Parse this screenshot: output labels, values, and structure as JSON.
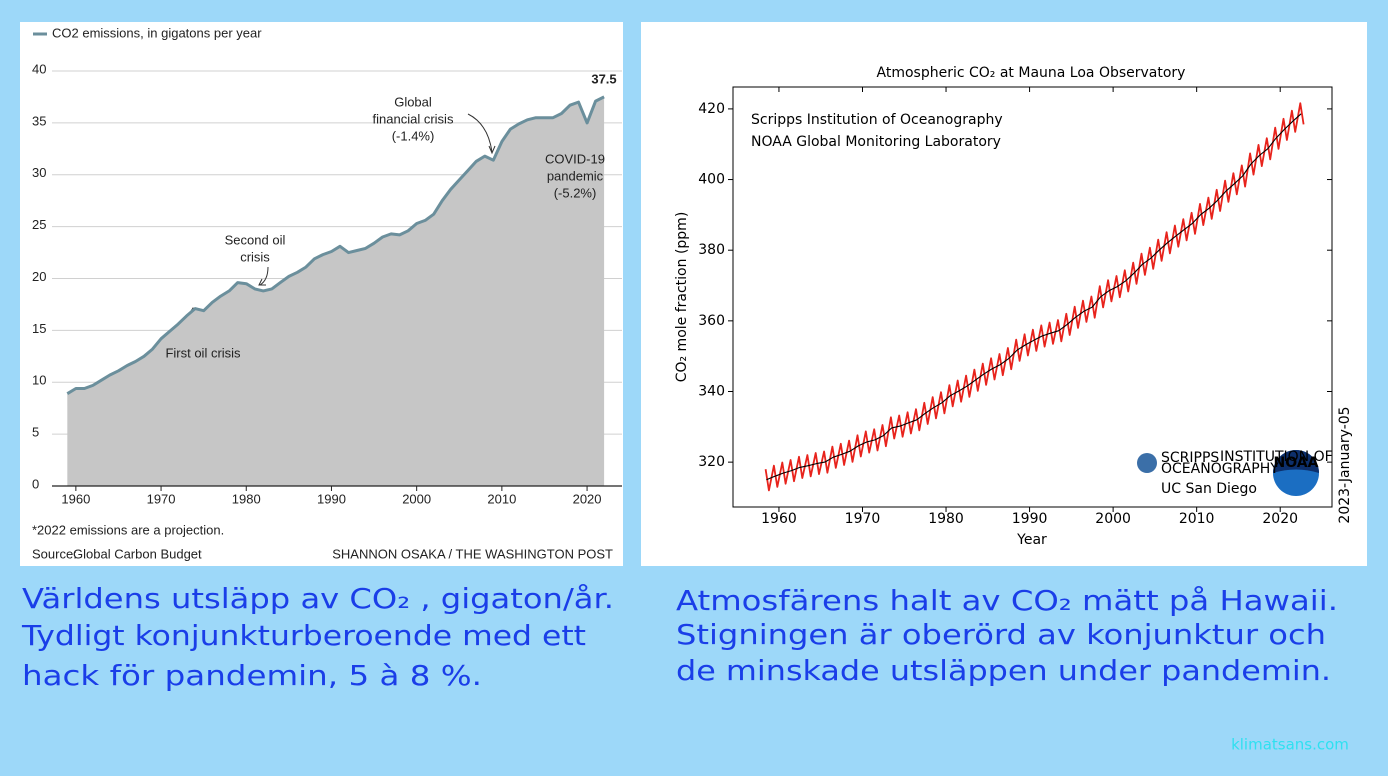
{
  "chart_data": [
    {
      "type": "area",
      "x": [
        1959,
        1960,
        1961,
        1962,
        1963,
        1964,
        1965,
        1966,
        1967,
        1968,
        1969,
        1970,
        1971,
        1972,
        1973,
        1974,
        1975,
        1976,
        1977,
        1978,
        1979,
        1980,
        1981,
        1982,
        1983,
        1984,
        1985,
        1986,
        1987,
        1988,
        1989,
        1990,
        1991,
        1992,
        1993,
        1994,
        1995,
        1996,
        1997,
        1998,
        1999,
        2000,
        2001,
        2002,
        2003,
        2004,
        2005,
        2006,
        2007,
        2008,
        2009,
        2010,
        2011,
        2012,
        2013,
        2014,
        2015,
        2016,
        2017,
        2018,
        2019,
        2020,
        2021,
        2022
      ],
      "series": [
        {
          "name": "CO2 emissions, in gigatons per year",
          "color": "#6b8f9c",
          "fill": "#c6c6c6",
          "values": [
            8.9,
            9.4,
            9.4,
            9.7,
            10.2,
            10.7,
            11.1,
            11.6,
            12.0,
            12.5,
            13.2,
            14.2,
            14.9,
            15.6,
            16.4,
            17.1,
            16.9,
            17.7,
            18.3,
            18.8,
            19.6,
            19.5,
            19.0,
            18.8,
            19.0,
            19.6,
            20.2,
            20.6,
            21.1,
            21.9,
            22.3,
            22.6,
            23.1,
            22.5,
            22.7,
            22.9,
            23.4,
            24.0,
            24.3,
            24.2,
            24.6,
            25.3,
            25.6,
            26.2,
            27.5,
            28.6,
            29.5,
            30.4,
            31.3,
            31.8,
            31.4,
            33.2,
            34.4,
            34.9,
            35.3,
            35.5,
            35.5,
            35.5,
            35.9,
            36.7,
            37.0,
            35.0,
            37.1,
            37.5
          ]
        }
      ],
      "xlim": [
        1957.2,
        2024.1
      ],
      "xticks": [
        1960,
        1970,
        1980,
        1990,
        2000,
        2010,
        2020
      ],
      "ylim": [
        0,
        40
      ],
      "yticks": [
        0,
        5,
        10,
        15,
        20,
        25,
        30,
        35,
        40
      ],
      "grid": true,
      "annotations": [
        {
          "lines": [
            "Global",
            "financial crisis",
            "(-1.4%)"
          ]
        },
        {
          "lines": [
            "COVID-19",
            "pandemic",
            "(-5.2%)"
          ]
        },
        {
          "lines": [
            "Second oil",
            "crisis"
          ]
        },
        {
          "lines": [
            "First oil crisis"
          ]
        },
        {
          "lines": [
            "37.5"
          ]
        }
      ],
      "footnote": "*2022 emissions are a projection.",
      "source_label": "Source:",
      "source": "Global Carbon Budget",
      "credit": "SHANNON OSAKA / THE WASHINGTON POST"
    },
    {
      "type": "line",
      "title": "Atmospheric CO₂ at Mauna Loa Observatory",
      "xlabel": "Year",
      "ylabel": "CO₂ mole fraction (ppm)",
      "series": [
        {
          "color": "#e8231c",
          "x": [
            1958.4,
            1958.8,
            1959.4,
            1959.8,
            1960.4,
            1960.8,
            1961.4,
            1961.8,
            1962.4,
            1962.8,
            1963.4,
            1963.8,
            1964.4,
            1964.8,
            1965.4,
            1965.8,
            1966.4,
            1966.8,
            1967.4,
            1967.8,
            1968.4,
            1968.8,
            1969.4,
            1969.8,
            1970.4,
            1970.8,
            1971.4,
            1971.8,
            1972.4,
            1972.8,
            1973.4,
            1973.8,
            1974.4,
            1974.8,
            1975.4,
            1975.8,
            1976.4,
            1976.8,
            1977.4,
            1977.8,
            1978.4,
            1978.8,
            1979.4,
            1979.8,
            1980.4,
            1980.8,
            1981.4,
            1981.8,
            1982.4,
            1982.8,
            1983.4,
            1983.8,
            1984.4,
            1984.8,
            1985.4,
            1985.8,
            1986.4,
            1986.8,
            1987.4,
            1987.8,
            1988.4,
            1988.8,
            1989.4,
            1989.8,
            1990.4,
            1990.8,
            1991.4,
            1991.8,
            1992.4,
            1992.8,
            1993.4,
            1993.8,
            1994.4,
            1994.8,
            1995.4,
            1995.8,
            1996.4,
            1996.8,
            1997.4,
            1997.8,
            1998.4,
            1998.8,
            1999.4,
            1999.8,
            2000.4,
            2000.8,
            2001.4,
            2001.8,
            2002.4,
            2002.8,
            2003.4,
            2003.8,
            2004.4,
            2004.8,
            2005.4,
            2005.8,
            2006.4,
            2006.8,
            2007.4,
            2007.8,
            2008.4,
            2008.8,
            2009.4,
            2009.8,
            2010.4,
            2010.8,
            2011.4,
            2011.8,
            2012.4,
            2012.8,
            2013.4,
            2013.8,
            2014.4,
            2014.8,
            2015.4,
            2015.8,
            2016.4,
            2016.8,
            2017.4,
            2017.8,
            2018.4,
            2018.8,
            2019.4,
            2019.8,
            2020.4,
            2020.8,
            2021.4,
            2021.8,
            2022.4,
            2022.8
          ],
          "values": [
            318.0,
            312.0,
            319.0,
            313.0,
            319.9,
            313.9,
            320.6,
            314.6,
            321.5,
            315.5,
            322.0,
            316.0,
            322.6,
            316.6,
            323.0,
            317.0,
            324.4,
            318.4,
            325.2,
            319.2,
            326.1,
            320.1,
            327.6,
            321.6,
            328.7,
            322.7,
            329.3,
            323.3,
            330.5,
            324.5,
            332.7,
            326.7,
            333.2,
            327.2,
            334.1,
            328.1,
            335.0,
            329.0,
            336.8,
            330.8,
            338.4,
            332.4,
            339.8,
            333.8,
            341.8,
            335.8,
            343.1,
            337.1,
            344.5,
            338.5,
            346.2,
            340.2,
            347.9,
            341.9,
            349.4,
            343.4,
            350.6,
            344.6,
            352.3,
            346.3,
            354.7,
            348.7,
            356.2,
            350.2,
            357.5,
            351.5,
            358.7,
            352.7,
            359.5,
            353.5,
            360.2,
            354.2,
            362.0,
            356.0,
            364.0,
            358.0,
            365.7,
            359.7,
            366.9,
            360.9,
            369.8,
            363.8,
            371.5,
            365.5,
            372.7,
            366.7,
            374.3,
            368.3,
            376.5,
            370.5,
            379.0,
            373.0,
            380.7,
            374.7,
            383.0,
            377.0,
            385.1,
            379.1,
            387.0,
            381.0,
            388.8,
            382.8,
            390.6,
            384.6,
            393.1,
            387.1,
            394.9,
            388.9,
            397.1,
            391.1,
            399.7,
            393.7,
            401.8,
            395.8,
            404.0,
            398.0,
            407.4,
            401.4,
            409.8,
            403.8,
            411.7,
            405.7,
            414.7,
            408.7,
            417.2,
            411.2,
            419.5,
            413.5,
            421.6,
            415.6
          ]
        },
        {
          "color": "#000000",
          "x": [
            1958.5,
            1959.5,
            1960.5,
            1961.5,
            1962.5,
            1963.5,
            1964.5,
            1965.5,
            1966.5,
            1967.5,
            1968.5,
            1969.5,
            1970.5,
            1971.5,
            1972.5,
            1973.5,
            1974.5,
            1975.5,
            1976.5,
            1977.5,
            1978.5,
            1979.5,
            1980.5,
            1981.5,
            1982.5,
            1983.5,
            1984.5,
            1985.5,
            1986.5,
            1987.5,
            1988.5,
            1989.5,
            1990.5,
            1991.5,
            1992.5,
            1993.5,
            1994.5,
            1995.5,
            1996.5,
            1997.5,
            1998.5,
            1999.5,
            2000.5,
            2001.5,
            2002.5,
            2003.5,
            2004.5,
            2005.5,
            2006.5,
            2007.5,
            2008.5,
            2009.5,
            2010.5,
            2011.5,
            2012.5,
            2013.5,
            2014.5,
            2015.5,
            2016.5,
            2017.5,
            2018.5,
            2019.5,
            2020.5,
            2021.5,
            2022.5
          ],
          "values": [
            315.0,
            316.0,
            316.9,
            317.6,
            318.5,
            319.0,
            319.6,
            320.0,
            321.4,
            322.2,
            323.1,
            324.6,
            325.7,
            326.3,
            327.5,
            329.7,
            330.2,
            331.1,
            332.0,
            333.8,
            335.4,
            336.8,
            338.8,
            340.1,
            341.5,
            343.2,
            344.9,
            346.4,
            347.6,
            349.3,
            351.7,
            353.2,
            354.5,
            355.7,
            356.5,
            357.2,
            359.0,
            361.0,
            362.7,
            363.9,
            366.8,
            368.5,
            369.7,
            371.3,
            373.5,
            376.0,
            377.7,
            380.0,
            382.1,
            384.0,
            385.8,
            387.6,
            390.1,
            391.9,
            394.1,
            396.7,
            398.8,
            401.0,
            404.4,
            406.8,
            408.7,
            411.7,
            414.2,
            416.5,
            418.6
          ]
        }
      ],
      "xlim": [
        1954.5,
        2026.2
      ],
      "xticks": [
        1960,
        1970,
        1980,
        1990,
        2000,
        2010,
        2020
      ],
      "ylim": [
        307.3,
        426.2
      ],
      "yticks": [
        320,
        340,
        360,
        380,
        400,
        420
      ],
      "annotations": [
        "Scripps Institution of Oceanography",
        "NOAA Global Monitoring Laboratory"
      ],
      "logos": [
        "SCRIPPS",
        "INSTITUTION OF",
        "OCEANOGRAPHY",
        "UC San Diego",
        "NOAA"
      ],
      "date": "2023-January-05"
    }
  ],
  "captions": {
    "left": [
      "Världens utsläpp av CO₂ , gigaton/år.",
      "Tydligt konjunkturberoende med ett",
      "hack för pandemin, 5 à 8 %."
    ],
    "right": [
      "Atmosfärens halt av CO₂ mätt på Hawaii.",
      "Stigningen är oberörd av konjunktur och",
      "de minskade utsläppen under pandemin."
    ]
  },
  "footer": "klimatsans.com"
}
